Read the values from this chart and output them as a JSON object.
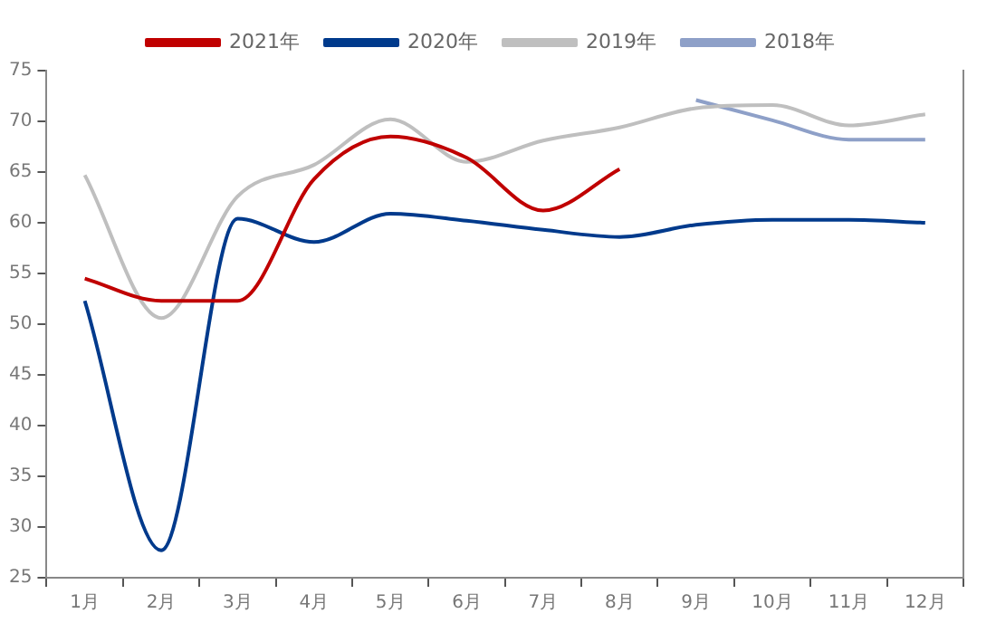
{
  "chart_data": {
    "type": "line",
    "categories": [
      "1月",
      "2月",
      "3月",
      "4月",
      "5月",
      "6月",
      "7月",
      "8月",
      "9月",
      "10月",
      "11月",
      "12月"
    ],
    "series": [
      {
        "name": "2021年",
        "color": "#c00000",
        "values": [
          54.5,
          52.3,
          52.3,
          64.3,
          68.5,
          66.4,
          61.2,
          65.3,
          null,
          null,
          null,
          null
        ]
      },
      {
        "name": "2020年",
        "color": "#003a8c",
        "values": [
          52.3,
          27.7,
          60.4,
          58.1,
          60.9,
          60.2,
          59.3,
          58.6,
          59.8,
          60.3,
          60.3,
          60.0
        ]
      },
      {
        "name": "2019年",
        "color": "#bfbfbf",
        "values": [
          64.7,
          50.6,
          62.6,
          65.7,
          70.2,
          66.0,
          68.1,
          69.4,
          71.3,
          71.6,
          69.6,
          70.7
        ]
      },
      {
        "name": "2018年",
        "color": "#8ea0c8",
        "values": [
          null,
          null,
          null,
          null,
          null,
          null,
          null,
          null,
          72.1,
          70.1,
          68.2,
          68.2
        ]
      }
    ],
    "ylim": [
      25,
      75
    ],
    "yticks": [
      25,
      30,
      35,
      40,
      45,
      50,
      55,
      60,
      65,
      70,
      75
    ],
    "grid": false,
    "legend": "top",
    "marker": "none",
    "line_style": "solid"
  }
}
